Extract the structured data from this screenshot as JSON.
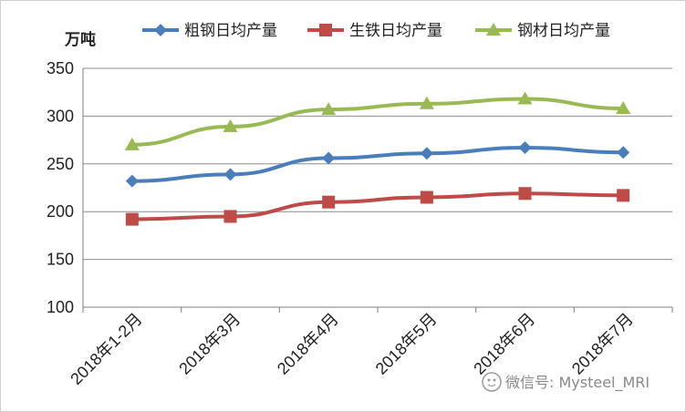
{
  "chart_data": {
    "type": "line",
    "ylabel": "万吨",
    "ylim": [
      100,
      350
    ],
    "yticks": [
      100,
      150,
      200,
      250,
      300,
      350
    ],
    "categories": [
      "2018年1-2月",
      "2018年3月",
      "2018年4月",
      "2018年5月",
      "2018年6月",
      "2018年7月"
    ],
    "grid": "horizontal",
    "legend": "top",
    "series": [
      {
        "name": "粗钢日均产量",
        "color": "#4a7ebb",
        "marker": "diamond",
        "values": [
          232,
          239,
          256,
          261,
          267,
          262
        ]
      },
      {
        "name": "生铁日均产量",
        "color": "#be4b48",
        "marker": "square",
        "values": [
          192,
          195,
          210,
          215,
          219,
          217
        ]
      },
      {
        "name": "钢材日均产量",
        "color": "#98b954",
        "marker": "triangle",
        "values": [
          270,
          289,
          307,
          313,
          318,
          308
        ]
      }
    ]
  },
  "watermark": {
    "text": "微信号: Mysteel_MRI",
    "icon": "wechat-icon"
  }
}
